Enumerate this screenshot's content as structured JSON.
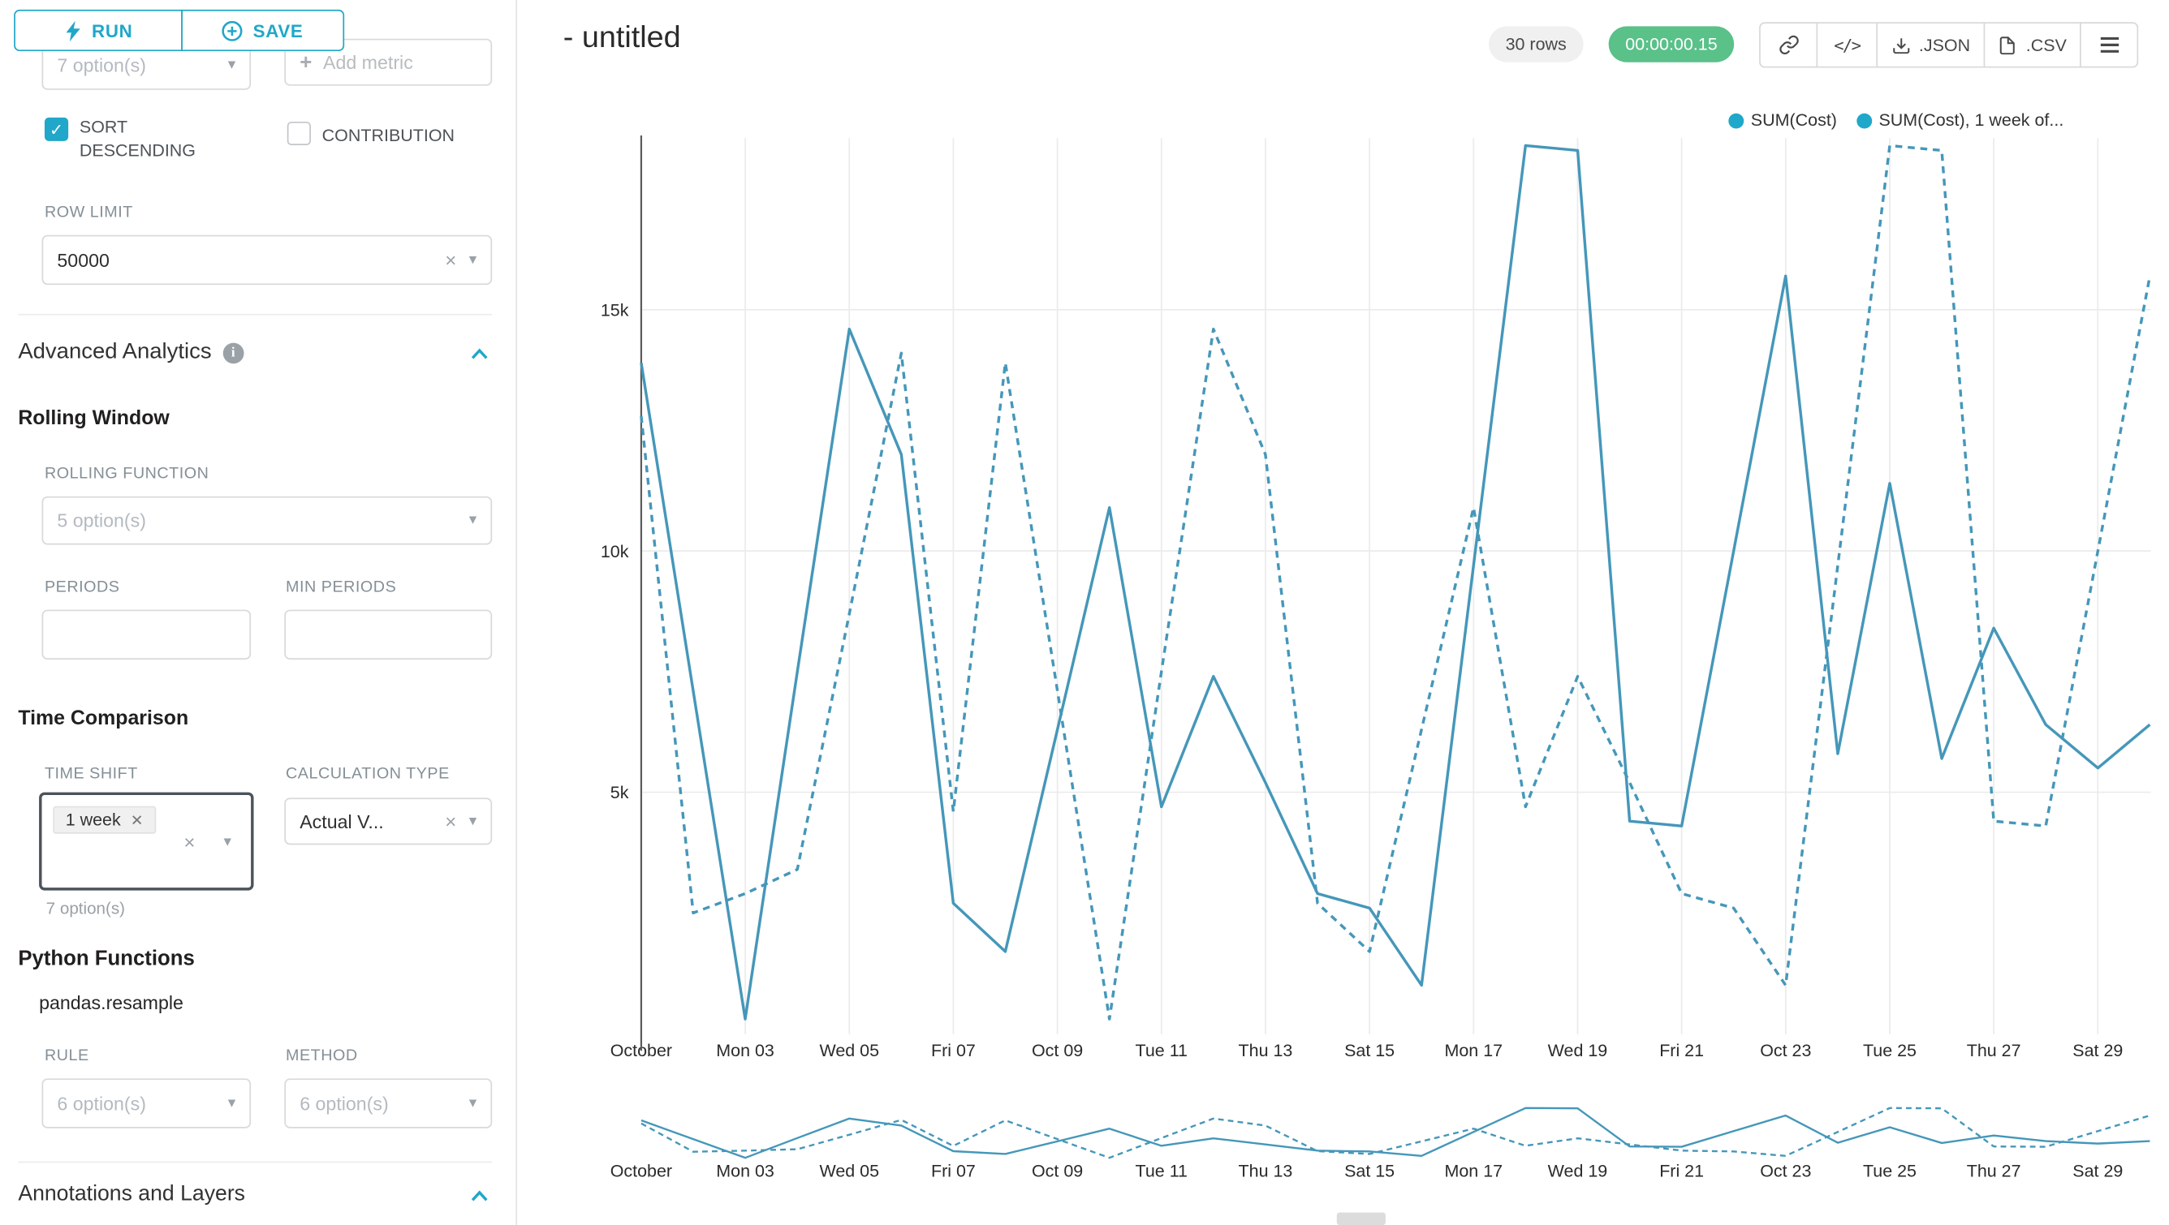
{
  "colors": {
    "accent": "#20a7c9",
    "series_line": "#4597b9",
    "legend_dot": "#1fa8c9",
    "timer_bg": "#5ac189"
  },
  "sidebar": {
    "run_button": "RUN",
    "save_button": "SAVE",
    "metrics_value": "7 option(s)",
    "add_metric": "Add metric",
    "sort_descending": {
      "label": "SORT DESCENDING",
      "checked": true
    },
    "contribution": {
      "label": "CONTRIBUTION",
      "checked": false
    },
    "row_limit_label": "ROW LIMIT",
    "row_limit_value": "50000",
    "advanced_analytics_title": "Advanced Analytics",
    "rolling_window_title": "Rolling Window",
    "rolling_function_label": "ROLLING FUNCTION",
    "rolling_function_value": "5 option(s)",
    "periods_label": "PERIODS",
    "min_periods_label": "MIN PERIODS",
    "time_comparison_title": "Time Comparison",
    "time_shift_label": "TIME SHIFT",
    "time_shift_tag": "1 week",
    "time_shift_hint": "7 option(s)",
    "calculation_type_label": "CALCULATION TYPE",
    "calculation_type_value": "Actual V...",
    "python_functions_title": "Python Functions",
    "pandas_resample": "pandas.resample",
    "rule_label": "RULE",
    "rule_value": "6 option(s)",
    "method_label": "METHOD",
    "method_value": "6 option(s)",
    "annotations_title": "Annotations and Layers"
  },
  "header": {
    "title": "- untitled",
    "rows_badge": "30 rows",
    "timer": "00:00:00.15",
    "json_button": ".JSON",
    "csv_button": ".CSV"
  },
  "chart_data": {
    "type": "line",
    "title": "- untitled",
    "x": [
      "Oct 01",
      "Oct 02",
      "Oct 03",
      "Oct 04",
      "Oct 05",
      "Oct 06",
      "Oct 07",
      "Oct 08",
      "Oct 09",
      "Oct 10",
      "Oct 11",
      "Oct 12",
      "Oct 13",
      "Oct 14",
      "Oct 15",
      "Oct 16",
      "Oct 17",
      "Oct 18",
      "Oct 19",
      "Oct 20",
      "Oct 21",
      "Oct 22",
      "Oct 23",
      "Oct 24",
      "Oct 25",
      "Oct 26",
      "Oct 27",
      "Oct 28",
      "Oct 29",
      "Oct 30"
    ],
    "x_tick_labels": [
      "October",
      "Mon 03",
      "Wed 05",
      "Fri 07",
      "Oct 09",
      "Tue 11",
      "Thu 13",
      "Sat 15",
      "Mon 17",
      "Wed 19",
      "Fri 21",
      "Oct 23",
      "Tue 25",
      "Thu 27",
      "Sat 29"
    ],
    "series": [
      {
        "name": "SUM(Cost)",
        "line_style": "solid",
        "values": [
          13900,
          7100,
          300,
          7500,
          14600,
          12000,
          2700,
          1700,
          6300,
          10900,
          4700,
          7400,
          5200,
          2900,
          2600,
          1000,
          9700,
          18400,
          18300,
          4400,
          4300,
          10000,
          15700,
          5800,
          11400,
          5700,
          8400,
          6400,
          5500,
          6400
        ]
      },
      {
        "name": "SUM(Cost), 1 week of...",
        "line_style": "dashed",
        "values": [
          12800,
          2500,
          2900,
          3400,
          8700,
          14100,
          4600,
          13900,
          7100,
          300,
          7500,
          14600,
          12000,
          2700,
          1700,
          6300,
          10900,
          4700,
          7400,
          5200,
          2900,
          2600,
          1000,
          9700,
          18400,
          18300,
          4400,
          4300,
          10000,
          15700
        ]
      }
    ],
    "yticks": [
      {
        "value": 5000,
        "label": "5k"
      },
      {
        "value": 10000,
        "label": "10k"
      },
      {
        "value": 15000,
        "label": "15k"
      }
    ],
    "ylim": [
      0,
      18600
    ],
    "xlabel": "",
    "ylabel": "",
    "grid": true,
    "legend_position": "top-right",
    "has_minimap": true
  }
}
